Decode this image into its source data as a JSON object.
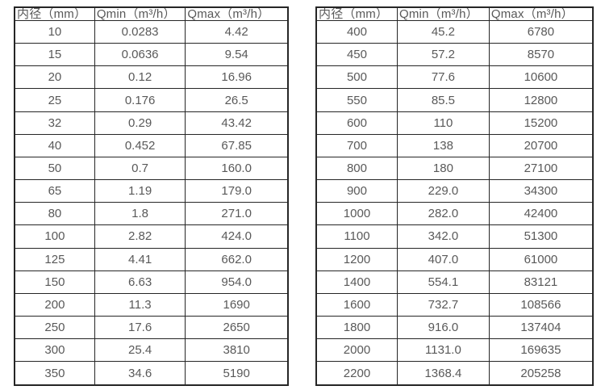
{
  "colors": {
    "border": "#262626",
    "text": "#595959",
    "background": "#ffffff"
  },
  "tables": [
    {
      "name": "flow-spec-table-small-diameters",
      "headers": [
        "内径（mm）",
        "Qmin（m³/h）",
        "Qmax（m³/h）"
      ],
      "rows": [
        [
          "10",
          "0.0283",
          "4.42"
        ],
        [
          "15",
          "0.0636",
          "9.54"
        ],
        [
          "20",
          "0.12",
          "16.96"
        ],
        [
          "25",
          "0.176",
          "26.5"
        ],
        [
          "32",
          "0.29",
          "43.42"
        ],
        [
          "40",
          "0.452",
          "67.85"
        ],
        [
          "50",
          "0.7",
          "160.0"
        ],
        [
          "65",
          "1.19",
          "179.0"
        ],
        [
          "80",
          "1.8",
          "271.0"
        ],
        [
          "100",
          "2.82",
          "424.0"
        ],
        [
          "125",
          "4.41",
          "662.0"
        ],
        [
          "150",
          "6.63",
          "954.0"
        ],
        [
          "200",
          "11.3",
          "1690"
        ],
        [
          "250",
          "17.6",
          "2650"
        ],
        [
          "300",
          "25.4",
          "3810"
        ],
        [
          "350",
          "34.6",
          "5190"
        ]
      ]
    },
    {
      "name": "flow-spec-table-large-diameters",
      "headers": [
        "内径（mm）",
        "Qmin（m³/h）",
        "Qmax（m³/h）"
      ],
      "rows": [
        [
          "400",
          "45.2",
          "6780"
        ],
        [
          "450",
          "57.2",
          "8570"
        ],
        [
          "500",
          "77.6",
          "10600"
        ],
        [
          "550",
          "85.5",
          "12800"
        ],
        [
          "600",
          "110",
          "15200"
        ],
        [
          "700",
          "138",
          "20700"
        ],
        [
          "800",
          "180",
          "27100"
        ],
        [
          "900",
          "229.0",
          "34300"
        ],
        [
          "1000",
          "282.0",
          "42400"
        ],
        [
          "1100",
          "342.0",
          "51300"
        ],
        [
          "1200",
          "407.0",
          "61000"
        ],
        [
          "1400",
          "554.1",
          "83121"
        ],
        [
          "1600",
          "732.7",
          "108566"
        ],
        [
          "1800",
          "916.0",
          "137404"
        ],
        [
          "2000",
          "1131.0",
          "169635"
        ],
        [
          "2200",
          "1368.4",
          "205258"
        ]
      ]
    }
  ]
}
